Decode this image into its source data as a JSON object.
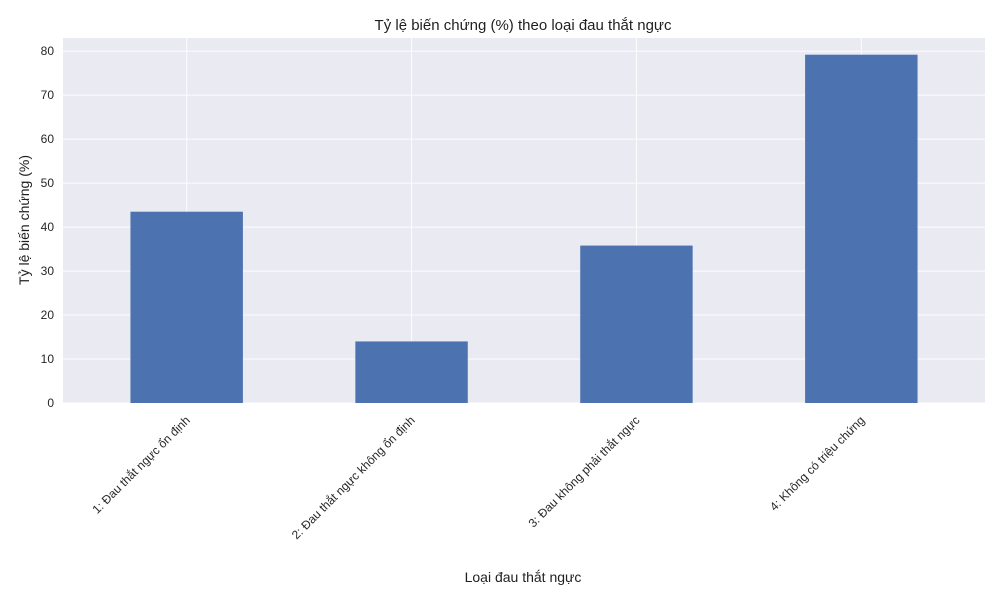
{
  "chart_data": {
    "type": "bar",
    "title": "Tỷ lệ biến chứng (%) theo loại đau thắt ngực",
    "xlabel": "Loại đau thắt ngực",
    "ylabel": "Tỷ lệ biến chứng (%)",
    "categories": [
      "1: Đau thắt ngực ổn định",
      "2: Đau thắt ngực không ổn định",
      "3: Đau không phải thắt ngực",
      "4: Không có triệu chứng"
    ],
    "values": [
      43.5,
      14.0,
      35.8,
      79.2
    ],
    "ylim": [
      0,
      83
    ],
    "yticks": [
      0,
      10,
      20,
      30,
      40,
      50,
      60,
      70,
      80
    ],
    "grid": true,
    "legend": "none"
  },
  "colors": {
    "bar": "#4c72b0",
    "plot_background": "#eaeaf2",
    "grid": "#ffffff"
  }
}
